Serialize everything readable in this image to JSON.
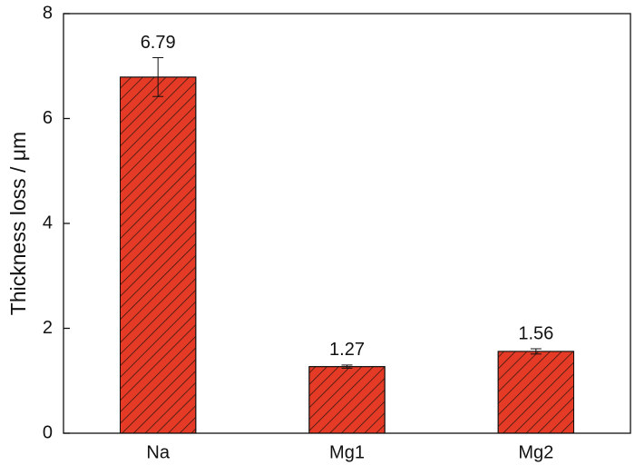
{
  "chart_data": {
    "type": "bar",
    "y_label": "Thickness loss / μm",
    "categories": [
      "Na",
      "Mg1",
      "Mg2"
    ],
    "values": [
      6.79,
      1.27,
      1.56
    ],
    "errors": [
      0.37,
      0.03,
      0.05
    ],
    "color": "#e53a26",
    "hatch": true,
    "ylim": [
      0,
      8
    ],
    "yticks": [
      0,
      2,
      4,
      6,
      8
    ]
  }
}
